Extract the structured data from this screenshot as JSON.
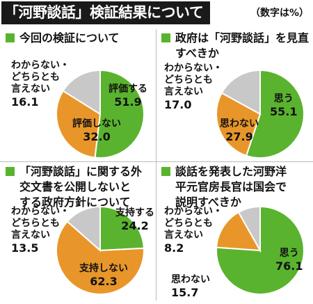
{
  "header": {
    "title": "「河野談話」検証結果について",
    "unit": "（数字は%）"
  },
  "colors": {
    "green": "#5ab32e",
    "orange": "#e8962a",
    "gray": "#c8c8c8",
    "black": "#1a1a1a"
  },
  "chart_data": [
    {
      "type": "pie",
      "title_lines": [
        "今回の検証について"
      ],
      "slices": [
        {
          "label": "評価する",
          "value": 51.9,
          "color": "#5ab32e"
        },
        {
          "label": "評価しない",
          "value": 32.0,
          "color": "#e8962a"
        },
        {
          "label": "わからない・どちらとも言えない",
          "label_lines": [
            "わからない・",
            "どちらとも",
            "言えない"
          ],
          "value": 16.1,
          "color": "#c8c8c8"
        }
      ]
    },
    {
      "type": "pie",
      "title_lines": [
        "政府は「河野談話」を見直",
        "すべきか"
      ],
      "slices": [
        {
          "label": "思う",
          "value": 55.1,
          "color": "#5ab32e"
        },
        {
          "label": "思わない",
          "value": 27.9,
          "color": "#e8962a"
        },
        {
          "label": "わからない・どちらとも言えない",
          "label_lines": [
            "わからない・",
            "どちらとも",
            "言えない"
          ],
          "value": 17.0,
          "color": "#c8c8c8"
        }
      ]
    },
    {
      "type": "pie",
      "title_lines": [
        "「河野談話」に関する外",
        "交文書を公開しないと",
        "する政府方針について"
      ],
      "slices": [
        {
          "label": "支持する",
          "value": 24.2,
          "color": "#5ab32e"
        },
        {
          "label": "支持しない",
          "value": 62.3,
          "color": "#e8962a"
        },
        {
          "label": "わからない・どちらとも言えない",
          "label_lines": [
            "わからない・",
            "どちらとも",
            "言えない"
          ],
          "value": 13.5,
          "color": "#c8c8c8"
        }
      ]
    },
    {
      "type": "pie",
      "title_lines": [
        "談話を発表した河野洋",
        "平元官房長官は国会で",
        "説明すべきか"
      ],
      "slices": [
        {
          "label": "思う",
          "value": 76.1,
          "color": "#5ab32e"
        },
        {
          "label": "思わない",
          "value": 15.7,
          "color": "#e8962a"
        },
        {
          "label": "わからない・どちらとも言えない",
          "label_lines": [
            "わからない・",
            "どちらとも",
            "言えない"
          ],
          "value": 8.2,
          "color": "#c8c8c8"
        }
      ]
    }
  ]
}
